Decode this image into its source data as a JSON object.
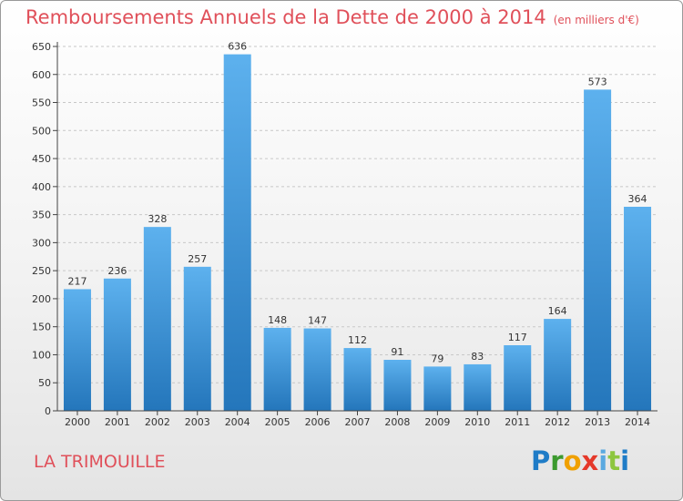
{
  "header": {
    "title": "Remboursements Annuels de la Dette de 2000 à 2014",
    "unit": "(en milliers d'€)"
  },
  "footer": {
    "commune": "LA TRIMOUILLE",
    "logo": [
      "P",
      "r",
      "o",
      "x",
      "i",
      "t",
      "i"
    ]
  },
  "colors": {
    "title": "#e0505a",
    "bar_top": "#5db1ee",
    "bar_bottom": "#2476bb"
  },
  "chart_data": {
    "type": "bar",
    "categories": [
      "2000",
      "2001",
      "2002",
      "2003",
      "2004",
      "2005",
      "2006",
      "2007",
      "2008",
      "2009",
      "2010",
      "2011",
      "2012",
      "2013",
      "2014"
    ],
    "values": [
      217,
      236,
      328,
      257,
      636,
      148,
      147,
      112,
      91,
      79,
      83,
      117,
      164,
      573,
      364
    ],
    "title": "Remboursements Annuels de la Dette de 2000 à 2014",
    "xlabel": "",
    "ylabel": "",
    "ylim": [
      0,
      650
    ],
    "yticks": [
      0,
      50,
      100,
      150,
      200,
      250,
      300,
      350,
      400,
      450,
      500,
      550,
      600,
      650
    ],
    "grid": true,
    "legend": "none"
  }
}
